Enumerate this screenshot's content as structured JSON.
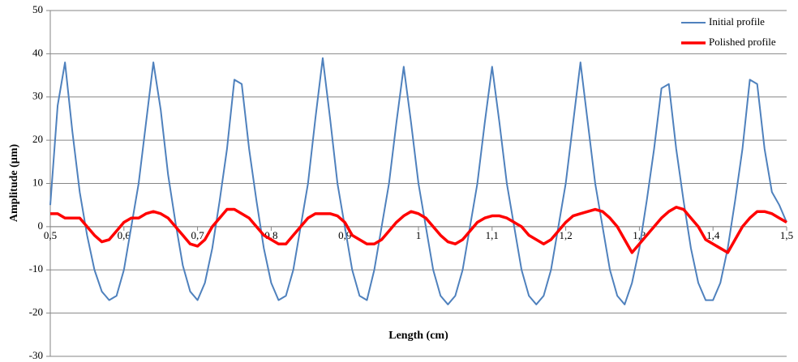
{
  "chart_data": {
    "type": "line",
    "x_label": "Length (cm)",
    "y_label": "Amplitude (µm)",
    "x": [
      0.5,
      0.51,
      0.52,
      0.53,
      0.54,
      0.55,
      0.56,
      0.57,
      0.58,
      0.59,
      0.6,
      0.61,
      0.62,
      0.63,
      0.64,
      0.65,
      0.66,
      0.67,
      0.68,
      0.69,
      0.7,
      0.71,
      0.72,
      0.73,
      0.74,
      0.75,
      0.76,
      0.77,
      0.78,
      0.79,
      0.8,
      0.81,
      0.82,
      0.83,
      0.84,
      0.85,
      0.86,
      0.87,
      0.88,
      0.89,
      0.9,
      0.91,
      0.92,
      0.93,
      0.94,
      0.95,
      0.96,
      0.97,
      0.98,
      0.99,
      1,
      1.01,
      1.02,
      1.03,
      1.04,
      1.05,
      1.06,
      1.07,
      1.08,
      1.09,
      1.1,
      1.11,
      1.12,
      1.13,
      1.14,
      1.15,
      1.16,
      1.17,
      1.18,
      1.19,
      1.2,
      1.21,
      1.22,
      1.23,
      1.24,
      1.25,
      1.26,
      1.27,
      1.28,
      1.29,
      1.3,
      1.31,
      1.32,
      1.33,
      1.34,
      1.35,
      1.36,
      1.37,
      1.38,
      1.39,
      1.4,
      1.41,
      1.42,
      1.43,
      1.44,
      1.45,
      1.46,
      1.47,
      1.48,
      1.49,
      1.5
    ],
    "series": [
      {
        "name": "Initial profile",
        "color": "#4f81bd",
        "width": 2,
        "values": [
          5,
          28,
          38,
          22,
          8,
          -2,
          -10,
          -15,
          -17,
          -16,
          -10,
          0,
          10,
          24,
          38,
          27,
          12,
          1,
          -9,
          -15,
          -17,
          -13,
          -5,
          6,
          18,
          34,
          33,
          18,
          6,
          -5,
          -13,
          -17,
          -16,
          -10,
          0,
          10,
          25,
          39,
          25,
          10,
          0,
          -10,
          -16,
          -17,
          -10,
          0,
          10,
          24,
          37,
          24,
          10,
          0,
          -10,
          -16,
          -18,
          -16,
          -10,
          0,
          10,
          24,
          37,
          24,
          10,
          0,
          -10,
          -16,
          -18,
          -16,
          -10,
          0,
          10,
          24,
          38,
          24,
          10,
          0,
          -10,
          -16,
          -18,
          -13,
          -5,
          6,
          18,
          32,
          33,
          18,
          6,
          -5,
          -13,
          -17,
          -17,
          -13,
          -5,
          6,
          18,
          34,
          33,
          18,
          8,
          5,
          1
        ]
      },
      {
        "name": "Polished profile",
        "color": "#ff0000",
        "width": 3.5,
        "values": [
          3,
          3,
          2,
          2,
          2,
          0,
          -2,
          -3.5,
          -3,
          -1,
          1,
          2,
          2,
          3,
          3.5,
          3,
          2,
          0,
          -2,
          -4,
          -4.5,
          -3,
          0,
          2,
          4,
          4,
          3,
          2,
          0,
          -2,
          -3,
          -4,
          -4,
          -2,
          0,
          2,
          3,
          3,
          3,
          2.5,
          1,
          -2,
          -3,
          -4,
          -4,
          -3,
          -1,
          1,
          2.5,
          3.5,
          3,
          2,
          0,
          -2,
          -3.5,
          -4,
          -3,
          -1,
          1,
          2,
          2.5,
          2.5,
          2,
          1,
          0,
          -2,
          -3,
          -4,
          -3,
          -1,
          1,
          2.5,
          3,
          3.5,
          4,
          3.5,
          2,
          0,
          -3,
          -6,
          -4,
          -2,
          0,
          2,
          3.5,
          4.5,
          4,
          2,
          0,
          -3,
          -4,
          -5,
          -6,
          -3,
          0,
          2,
          3.5,
          3.5,
          3,
          2,
          1
        ]
      }
    ],
    "xlim": [
      0.5,
      1.5
    ],
    "xticks": [
      {
        "value": 0.5,
        "label": "0,5"
      },
      {
        "value": 0.6,
        "label": "0,6"
      },
      {
        "value": 0.7,
        "label": "0,7"
      },
      {
        "value": 0.8,
        "label": "0,8"
      },
      {
        "value": 0.9,
        "label": "0,9"
      },
      1,
      {
        "value": 1.1,
        "label": "1,1"
      },
      {
        "value": 1.2,
        "label": "1,2"
      },
      {
        "value": 1.3,
        "label": "1,3"
      },
      {
        "value": 1.4,
        "label": "1,4"
      },
      {
        "value": 1.5,
        "label": "1,5"
      }
    ],
    "ylim": [
      -30,
      50
    ],
    "yticks": [
      -30,
      -20,
      -10,
      0,
      10,
      20,
      30,
      40,
      50
    ],
    "grid": true,
    "legend": "upper-right"
  }
}
